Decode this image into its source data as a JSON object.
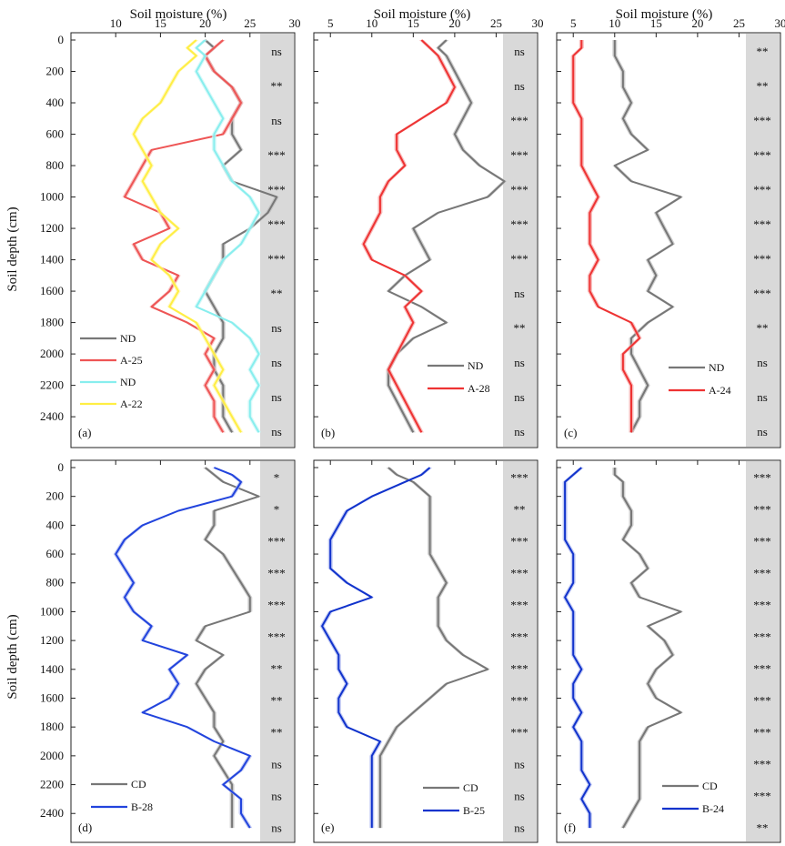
{
  "figure": {
    "x_axis_title": "Soil moisture (%)",
    "y_axis_title": "Soil depth (cm)"
  },
  "chart_data": [
    {
      "type": "line",
      "panel": "(a)",
      "xlim": [
        5,
        30
      ],
      "ylim": [
        0,
        2550
      ],
      "x_ticks": [
        "10",
        "15",
        "20",
        "25",
        "30"
      ],
      "y_ticks": [
        "0",
        "200",
        "400",
        "600",
        "800",
        "1000",
        "1200",
        "1400",
        "1600",
        "1800",
        "2000",
        "2200",
        "2400"
      ],
      "significance": [
        "ns",
        "**",
        "ns",
        "***",
        "***",
        "***",
        "***",
        "**",
        "ns",
        "ns",
        "ns",
        "ns"
      ],
      "legend": [
        "ND",
        "A-25",
        "ND",
        "A-22"
      ],
      "series": [
        {
          "name": "ND",
          "color": "#777777",
          "band": "#bbbbbb",
          "depth": [
            0,
            50,
            100,
            200,
            300,
            400,
            500,
            600,
            700,
            800,
            900,
            1000,
            1100,
            1200,
            1300,
            1400,
            1500,
            1600,
            1700,
            1800,
            1900,
            2000,
            2100,
            2200,
            2300,
            2400,
            2500
          ],
          "x": [
            20,
            21,
            20,
            21,
            23,
            24,
            23,
            23,
            24,
            22,
            23,
            28,
            27,
            25,
            22,
            22,
            21,
            20,
            21,
            22,
            22,
            21,
            21,
            22,
            22,
            22,
            23
          ]
        },
        {
          "name": "A-25",
          "color": "#ee5555",
          "band": "#f5aaaa",
          "depth": [
            0,
            50,
            100,
            200,
            300,
            400,
            500,
            600,
            700,
            800,
            900,
            1000,
            1100,
            1200,
            1300,
            1400,
            1500,
            1600,
            1700,
            1800,
            1900,
            2000,
            2100,
            2200,
            2300,
            2400,
            2500
          ],
          "x": [
            22,
            21,
            20,
            21,
            23,
            24,
            23,
            22,
            14,
            13,
            12,
            11,
            15,
            16,
            12,
            13,
            17,
            16,
            14,
            18,
            21,
            20,
            21,
            20,
            21,
            21,
            22
          ]
        },
        {
          "name": "ND",
          "color": "#88eeee",
          "band": "#c8f6f6",
          "depth": [
            0,
            50,
            100,
            200,
            300,
            400,
            500,
            600,
            700,
            800,
            900,
            1000,
            1100,
            1200,
            1300,
            1400,
            1500,
            1600,
            1700,
            1800,
            1900,
            2000,
            2100,
            2200,
            2300,
            2400,
            2500
          ],
          "x": [
            20,
            19,
            20,
            19,
            20,
            21,
            22,
            21,
            21,
            22,
            23,
            25,
            26,
            25,
            24,
            22,
            21,
            20,
            19,
            23,
            25,
            26,
            25,
            26,
            25,
            25,
            26
          ]
        },
        {
          "name": "A-22",
          "color": "#ffee44",
          "band": "#fff6aa",
          "depth": [
            0,
            50,
            100,
            200,
            300,
            400,
            500,
            600,
            700,
            800,
            900,
            1000,
            1100,
            1200,
            1300,
            1400,
            1500,
            1600,
            1700,
            1800,
            1900,
            2000,
            2100,
            2200,
            2300,
            2400,
            2500
          ],
          "x": [
            19,
            18,
            19,
            17,
            16,
            15,
            13,
            12,
            13,
            14,
            13,
            14,
            15,
            17,
            15,
            14,
            16,
            17,
            16,
            19,
            20,
            21,
            22,
            21,
            22,
            23,
            24
          ]
        }
      ]
    },
    {
      "type": "line",
      "panel": "(b)",
      "xlim": [
        3,
        30
      ],
      "ylim": [
        0,
        2550
      ],
      "x_ticks": [
        "5",
        "10",
        "15",
        "20",
        "25",
        "30"
      ],
      "y_ticks": [],
      "significance": [
        "ns",
        "ns",
        "***",
        "***",
        "***",
        "***",
        "***",
        "ns",
        "**",
        "ns",
        "ns",
        "ns"
      ],
      "legend": [
        "ND",
        "A-28"
      ],
      "series": [
        {
          "name": "ND",
          "color": "#777777",
          "band": "#bbbbbb",
          "depth": [
            0,
            50,
            100,
            200,
            300,
            400,
            500,
            600,
            700,
            800,
            900,
            1000,
            1100,
            1200,
            1300,
            1400,
            1500,
            1600,
            1700,
            1800,
            1900,
            2000,
            2100,
            2200,
            2300,
            2400,
            2500
          ],
          "x": [
            19,
            18,
            19,
            20,
            21,
            22,
            21,
            20,
            21,
            23,
            26,
            24,
            18,
            15,
            16,
            17,
            14,
            12,
            16,
            19,
            15,
            13,
            12,
            12,
            13,
            14,
            15
          ]
        },
        {
          "name": "A-28",
          "color": "#ee3333",
          "band": "#f5a0a0",
          "depth": [
            0,
            50,
            100,
            200,
            300,
            400,
            500,
            600,
            700,
            800,
            900,
            1000,
            1100,
            1200,
            1300,
            1400,
            1500,
            1600,
            1700,
            1800,
            1900,
            2000,
            2100,
            2200,
            2300,
            2400,
            2500
          ],
          "x": [
            16,
            17,
            18,
            19,
            20,
            19,
            16,
            13,
            13,
            14,
            12,
            11,
            11,
            10,
            9,
            10,
            14,
            16,
            14,
            15,
            14,
            13,
            12,
            13,
            14,
            15,
            16
          ]
        }
      ]
    },
    {
      "type": "line",
      "panel": "(c)",
      "xlim": [
        3,
        30
      ],
      "ylim": [
        0,
        2550
      ],
      "x_ticks": [
        "5",
        "10",
        "15",
        "20",
        "25",
        "30"
      ],
      "y_ticks": [],
      "significance": [
        "**",
        "**",
        "***",
        "***",
        "***",
        "***",
        "***",
        "***",
        "**",
        "ns",
        "ns",
        "ns"
      ],
      "legend": [
        "ND",
        "A-24"
      ],
      "series": [
        {
          "name": "ND",
          "color": "#777777",
          "band": "#bbbbbb",
          "depth": [
            0,
            50,
            100,
            200,
            300,
            400,
            500,
            600,
            700,
            800,
            900,
            1000,
            1100,
            1200,
            1300,
            1400,
            1500,
            1600,
            1700,
            1800,
            1900,
            2000,
            2100,
            2200,
            2300,
            2400,
            2500
          ],
          "x": [
            10,
            10,
            10,
            11,
            11,
            12,
            11,
            12,
            14,
            10,
            12,
            18,
            15,
            16,
            17,
            14,
            15,
            14,
            17,
            14,
            12,
            12,
            13,
            14,
            13,
            13,
            12
          ]
        },
        {
          "name": "A-24",
          "color": "#ee3333",
          "band": "#f5a0a0",
          "depth": [
            0,
            50,
            100,
            200,
            300,
            400,
            500,
            600,
            700,
            800,
            900,
            1000,
            1100,
            1200,
            1300,
            1400,
            1500,
            1600,
            1700,
            1800,
            1900,
            2000,
            2100,
            2200,
            2300,
            2400,
            2500
          ],
          "x": [
            6,
            6,
            5,
            5,
            5,
            5,
            6,
            6,
            6,
            6,
            7,
            8,
            7,
            7,
            7,
            8,
            7,
            7,
            8,
            12,
            13,
            11,
            11,
            12,
            12,
            12,
            12
          ]
        }
      ]
    },
    {
      "type": "line",
      "panel": "(d)",
      "xlim": [
        5,
        30
      ],
      "ylim": [
        0,
        2550
      ],
      "x_ticks": [],
      "y_ticks": [
        "0",
        "200",
        "400",
        "600",
        "800",
        "1000",
        "1200",
        "1400",
        "1600",
        "1800",
        "2000",
        "2200",
        "2400"
      ],
      "significance": [
        "*",
        "*",
        "***",
        "***",
        "***",
        "***",
        "**",
        "**",
        "**",
        "ns",
        "ns",
        "ns"
      ],
      "legend": [
        "CD",
        "B-28"
      ],
      "series": [
        {
          "name": "CD",
          "color": "#777777",
          "band": "#bbbbbb",
          "depth": [
            0,
            50,
            100,
            200,
            300,
            400,
            500,
            600,
            700,
            800,
            900,
            1000,
            1100,
            1200,
            1300,
            1400,
            1500,
            1600,
            1700,
            1800,
            1900,
            2000,
            2100,
            2200,
            2300,
            2400,
            2500
          ],
          "x": [
            20,
            21,
            22,
            26,
            21,
            21,
            20,
            22,
            23,
            24,
            25,
            25,
            20,
            19,
            22,
            20,
            19,
            20,
            21,
            21,
            22,
            21,
            22,
            23,
            23,
            23,
            23
          ]
        },
        {
          "name": "B-28",
          "color": "#2244dd",
          "band": "#a8b4f0",
          "depth": [
            0,
            50,
            100,
            200,
            300,
            400,
            500,
            600,
            700,
            800,
            900,
            1000,
            1100,
            1200,
            1300,
            1400,
            1500,
            1600,
            1700,
            1800,
            1900,
            2000,
            2100,
            2200,
            2300,
            2400,
            2500
          ],
          "x": [
            21,
            23,
            24,
            23,
            17,
            13,
            11,
            10,
            11,
            12,
            11,
            12,
            14,
            13,
            18,
            16,
            17,
            16,
            13,
            18,
            21,
            25,
            24,
            22,
            24,
            24,
            25
          ]
        }
      ]
    },
    {
      "type": "line",
      "panel": "(e)",
      "xlim": [
        3,
        30
      ],
      "ylim": [
        0,
        2550
      ],
      "x_ticks": [],
      "y_ticks": [],
      "significance": [
        "***",
        "**",
        "***",
        "***",
        "***",
        "***",
        "***",
        "***",
        "***",
        "ns",
        "ns",
        "ns"
      ],
      "legend": [
        "CD",
        "B-25"
      ],
      "series": [
        {
          "name": "CD",
          "color": "#777777",
          "band": "#bbbbbb",
          "depth": [
            0,
            50,
            100,
            200,
            300,
            400,
            500,
            600,
            700,
            800,
            900,
            1000,
            1100,
            1200,
            1300,
            1400,
            1500,
            1600,
            1700,
            1800,
            1900,
            2000,
            2100,
            2200,
            2300,
            2400,
            2500
          ],
          "x": [
            12,
            13,
            15,
            17,
            17,
            17,
            17,
            17,
            18,
            19,
            18,
            18,
            18,
            19,
            21,
            24,
            19,
            17,
            15,
            13,
            12,
            11,
            11,
            11,
            11,
            11,
            11
          ]
        },
        {
          "name": "B-25",
          "color": "#1133cc",
          "band": "#a8b4f0",
          "depth": [
            0,
            50,
            100,
            200,
            300,
            400,
            500,
            600,
            700,
            800,
            900,
            1000,
            1100,
            1200,
            1300,
            1400,
            1500,
            1600,
            1700,
            1800,
            1900,
            2000,
            2100,
            2200,
            2300,
            2400,
            2500
          ],
          "x": [
            17,
            16,
            14,
            10,
            7,
            6,
            5,
            5,
            5,
            7,
            10,
            5,
            4,
            5,
            6,
            6,
            7,
            6,
            6,
            7,
            11,
            10,
            10,
            10,
            10,
            10,
            10
          ]
        }
      ]
    },
    {
      "type": "line",
      "panel": "(f)",
      "xlim": [
        3,
        30
      ],
      "ylim": [
        0,
        2550
      ],
      "x_ticks": [],
      "y_ticks": [],
      "significance": [
        "***",
        "***",
        "***",
        "***",
        "***",
        "***",
        "***",
        "***",
        "***",
        "***",
        "***",
        "**"
      ],
      "legend": [
        "CD",
        "B-24"
      ],
      "series": [
        {
          "name": "CD",
          "color": "#777777",
          "band": "#bbbbbb",
          "depth": [
            0,
            50,
            100,
            200,
            300,
            400,
            500,
            600,
            700,
            800,
            900,
            1000,
            1100,
            1200,
            1300,
            1400,
            1500,
            1600,
            1700,
            1800,
            1900,
            2000,
            2100,
            2200,
            2300,
            2400,
            2500
          ],
          "x": [
            10,
            10,
            11,
            11,
            12,
            12,
            11,
            13,
            14,
            12,
            13,
            18,
            14,
            16,
            17,
            15,
            14,
            15,
            18,
            14,
            13,
            13,
            13,
            13,
            13,
            12,
            11
          ]
        },
        {
          "name": "B-24",
          "color": "#1133cc",
          "band": "#a8b4f0",
          "depth": [
            0,
            50,
            100,
            200,
            300,
            400,
            500,
            600,
            700,
            800,
            900,
            1000,
            1100,
            1200,
            1300,
            1400,
            1500,
            1600,
            1700,
            1800,
            1900,
            2000,
            2100,
            2200,
            2300,
            2400,
            2500
          ],
          "x": [
            6,
            5,
            4,
            4,
            4,
            4,
            4,
            5,
            5,
            5,
            4,
            5,
            5,
            5,
            5,
            6,
            5,
            5,
            6,
            5,
            6,
            6,
            6,
            7,
            6,
            7,
            7
          ]
        }
      ]
    }
  ]
}
